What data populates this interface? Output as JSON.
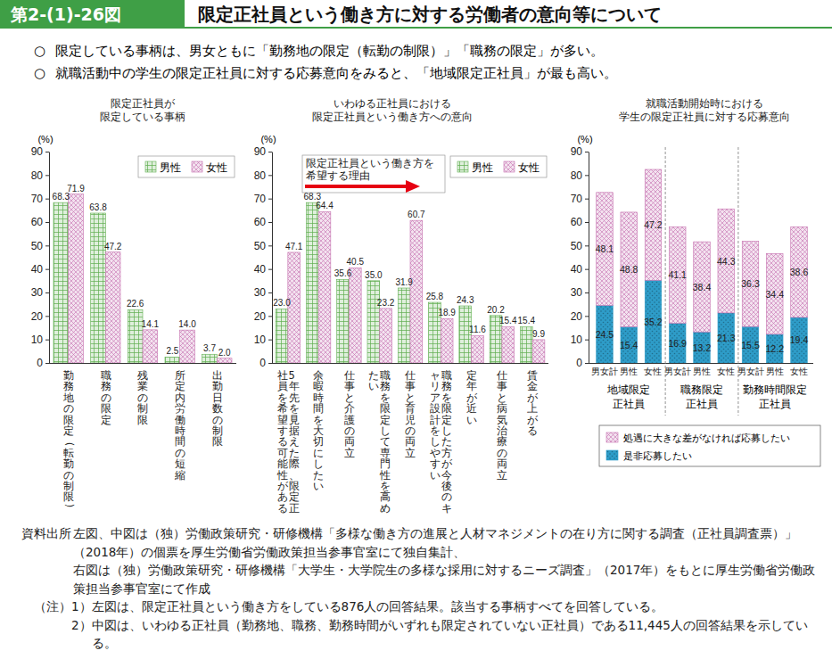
{
  "header": {
    "figure_number": "第2-(1)-26図",
    "title": "限定正社員という働き方に対する労働者の意向等について"
  },
  "bullet_mark": "○",
  "bullets": [
    "限定している事柄は、男女ともに「勤務地の限定（転勤の制限）」「職務の限定」が多い。",
    "就職活動中の学生の限定正社員に対する応募意向をみると、「地域限定正社員」が最も高い。"
  ],
  "chart_data": [
    {
      "type": "bar",
      "title": [
        "限定正社員が",
        "限定している事柄"
      ],
      "y_label": "(%)",
      "categories": [
        "勤務地の限定（転勤の制限）",
        "職務の限定",
        "残業の制限",
        "所定内労働時間の短縮",
        "出勤日数の制限"
      ],
      "series": [
        {
          "name": "男性",
          "color": "#5fae4f",
          "values": [
            68.3,
            63.8,
            22.6,
            2.5,
            3.7
          ],
          "value_labels": [
            "68.3",
            "63.8",
            "22.6",
            "2.5",
            "3.7"
          ]
        },
        {
          "name": "女性",
          "color": "#c56fae",
          "values": [
            71.9,
            47.2,
            14.1,
            14.0,
            2.0
          ],
          "value_labels": [
            "71.9",
            "47.2",
            "14.1",
            "14.0",
            "2.0"
          ]
        }
      ],
      "ylim": [
        0,
        90
      ],
      "yticks": [
        0,
        10,
        20,
        30,
        40,
        50,
        60,
        70,
        80,
        90
      ],
      "legend": "top-right",
      "data_labels": true
    },
    {
      "type": "bar",
      "title": [
        "いわゆる正社員における",
        "限定正社員という働き方への意向"
      ],
      "y_label": "(%)",
      "annotation": "限定正社員という働き方を希望する理由",
      "categories": [
        "5年先を見据えた際、限定正社員を希望する可能性がある",
        "余暇時間を大切にしたい",
        "仕事と介護の両立",
        "職務を限定して専門性を高めたい",
        "仕事と育児の両立",
        "職務を限定した方が今後のキャリア設計をしやすい",
        "定年が近い",
        "仕事と病気治療の両立",
        "賃金が上がる"
      ],
      "series": [
        {
          "name": "男性",
          "color": "#5fae4f",
          "values": [
            23.0,
            68.3,
            35.6,
            35.0,
            31.9,
            25.8,
            24.3,
            20.2,
            15.4
          ],
          "value_labels": [
            "23.0",
            "68.3",
            "35.6",
            "35.0",
            "31.9",
            "25.8",
            "24.3",
            "20.2",
            "15.4"
          ]
        },
        {
          "name": "女性",
          "color": "#c56fae",
          "values": [
            47.1,
            64.4,
            40.5,
            23.2,
            60.7,
            18.9,
            11.6,
            15.4,
            9.9
          ],
          "value_labels": [
            "47.1",
            "64.4",
            "40.5",
            "23.2",
            "60.7",
            "18.9",
            "11.6",
            "15.4",
            "9.9"
          ]
        }
      ],
      "ylim": [
        0,
        90
      ],
      "yticks": [
        0,
        10,
        20,
        30,
        40,
        50,
        60,
        70,
        80,
        90
      ],
      "legend": "top-right",
      "data_labels": true
    },
    {
      "type": "bar",
      "stacked": true,
      "title": [
        "就職活動開始時における",
        "学生の限定正社員に対する応募意向"
      ],
      "y_label": "(%)",
      "categories": [
        "男女計",
        "男性",
        "女性",
        "男女計",
        "男性",
        "女性",
        "男女計",
        "男性",
        "女性"
      ],
      "groups": [
        [
          "地域限定",
          "正社員"
        ],
        [
          "職務限定",
          "正社員"
        ],
        [
          "勤務時間限定",
          "正社員"
        ]
      ],
      "series": [
        {
          "name": "是非応募したい",
          "color": "#2e9cc8",
          "values": [
            24.5,
            15.4,
            35.2,
            16.9,
            13.2,
            21.3,
            15.5,
            12.2,
            19.4
          ],
          "value_labels": [
            "24.5",
            "15.4",
            "35.2",
            "16.9",
            "13.2",
            "21.3",
            "15.5",
            "12.2",
            "19.4"
          ]
        },
        {
          "name": "処遇に大きな差がなければ応募したい",
          "color": "#c56fae",
          "values": [
            48.1,
            48.8,
            47.2,
            41.1,
            38.4,
            44.3,
            36.3,
            34.4,
            38.6
          ],
          "value_labels": [
            "48.1",
            "48.8",
            "47.2",
            "41.1",
            "38.4",
            "44.3",
            "36.3",
            "34.4",
            "38.6"
          ]
        }
      ],
      "ylim": [
        0,
        90
      ],
      "yticks": [
        0,
        10,
        20,
        30,
        40,
        50,
        60,
        70,
        80,
        90
      ],
      "legend": "bottom",
      "data_labels": true
    }
  ],
  "source": {
    "label": "資料出所",
    "items": [
      "左図、中図は（独）労働政策研究・研修機構「多様な働き方の進展と人材マネジメントの在り方に関する調査（正社員調査票）」（2018年）の個票を厚生労働省労働政策担当参事官室にて独自集計、",
      "右図は（独）労働政策研究・研修機構「大学生・大学院生の多様な採用に対するニーズ調査」（2017年）をもとに厚生労働省労働政策担当参事官室にて作成"
    ]
  },
  "notes": {
    "label": "（注）",
    "items": [
      "1）左図は、限定正社員という働き方をしている876人の回答結果。該当する事柄すべてを回答している。",
      "2）中図は、いわゆる正社員（勤務地、職務、勤務時間がいずれも限定されていない正社員）である11,445人の回答結果を示している。"
    ]
  }
}
